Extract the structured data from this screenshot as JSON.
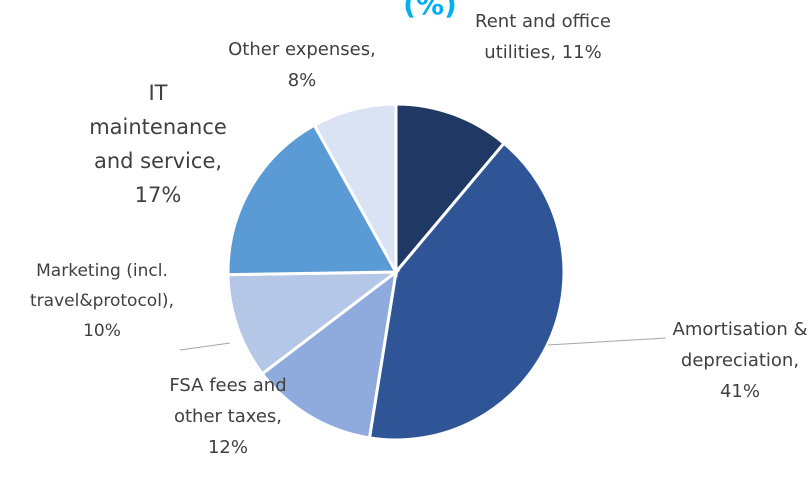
{
  "chart_data": {
    "type": "pie",
    "title": "(%)",
    "values": [
      11,
      41,
      12,
      10,
      17,
      8
    ],
    "value_labels": [
      "Rent and office utilities, 11%",
      "Amortisation & depreciation, 41%",
      "FSA fees and other taxes, 12%",
      "Marketing (incl. travel&protocol), 10%",
      "IT maintenance and service, 17%",
      "Other expenses, 8%"
    ],
    "colors": [
      "#1f3864",
      "#2f5597",
      "#8faadc",
      "#b4c7e7",
      "#5b9bd5",
      "#dae3f3"
    ]
  }
}
